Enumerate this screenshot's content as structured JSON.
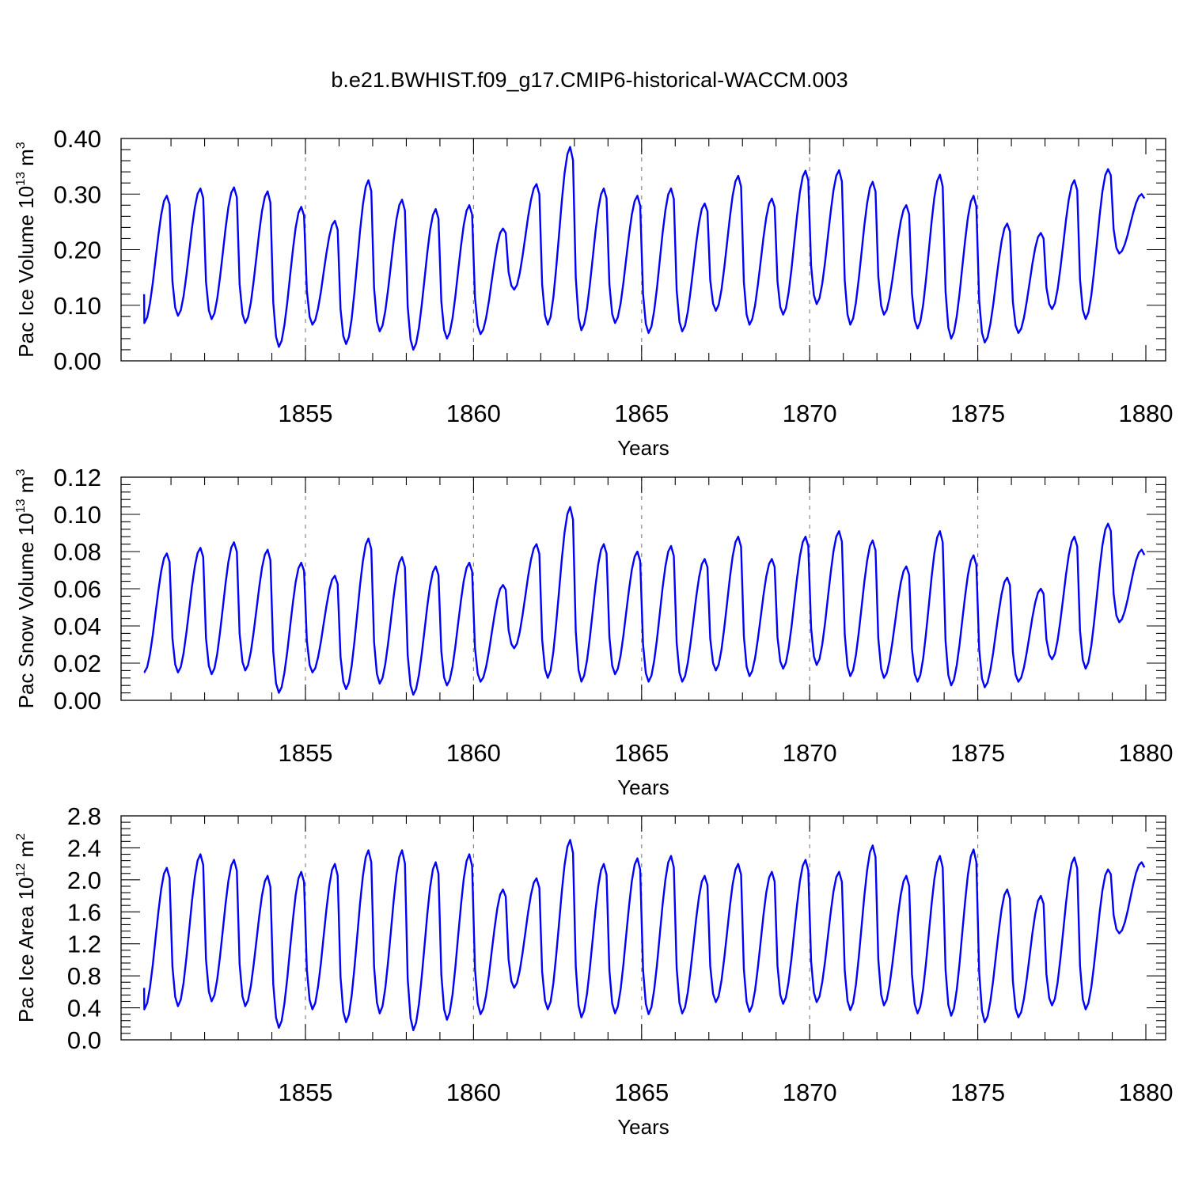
{
  "figure": {
    "title": "b.e21.BWHIST.f09_g17.CMIP6-historical-WACCM.003"
  },
  "colors": {
    "series": "#0000ff",
    "axis": "#000000",
    "reference_lines": "#888888"
  },
  "chart_data": [
    {
      "type": "line",
      "ylabel": "Pac Ice Volume 10^13 m^3",
      "ylabel_parts": {
        "main": "Pac Ice Volume 10",
        "exp1": "13",
        "unit": " m",
        "exp2": "3"
      },
      "xlabel": "Years",
      "xlim": [
        1850.2,
        1880.0
      ],
      "ylim": [
        0.0,
        0.4
      ],
      "xticks": [
        1855,
        1860,
        1865,
        1870,
        1875,
        1880
      ],
      "yticks": [
        0.0,
        0.1,
        0.2,
        0.3,
        0.4
      ],
      "ytick_labels": [
        "0.00",
        "0.10",
        "0.20",
        "0.30",
        "0.40"
      ],
      "reference_lines_x": [
        1855,
        1860,
        1865,
        1870,
        1875
      ],
      "series": [
        {
          "cycles": [
            {
              "peak": 0.297,
              "trough": 0.068
            },
            {
              "peak": 0.31,
              "trough": 0.081
            },
            {
              "peak": 0.312,
              "trough": 0.075
            },
            {
              "peak": 0.305,
              "trough": 0.068
            },
            {
              "peak": 0.277,
              "trough": 0.025
            },
            {
              "peak": 0.252,
              "trough": 0.065
            },
            {
              "peak": 0.325,
              "trough": 0.03
            },
            {
              "peak": 0.29,
              "trough": 0.053
            },
            {
              "peak": 0.273,
              "trough": 0.02
            },
            {
              "peak": 0.28,
              "trough": 0.04
            },
            {
              "peak": 0.238,
              "trough": 0.048
            },
            {
              "peak": 0.318,
              "trough": 0.128
            },
            {
              "peak": 0.385,
              "trough": 0.065
            },
            {
              "peak": 0.31,
              "trough": 0.055
            },
            {
              "peak": 0.297,
              "trough": 0.068
            },
            {
              "peak": 0.31,
              "trough": 0.05
            },
            {
              "peak": 0.283,
              "trough": 0.053
            },
            {
              "peak": 0.333,
              "trough": 0.09
            },
            {
              "peak": 0.292,
              "trough": 0.065
            },
            {
              "peak": 0.342,
              "trough": 0.083
            },
            {
              "peak": 0.343,
              "trough": 0.102
            },
            {
              "peak": 0.322,
              "trough": 0.065
            },
            {
              "peak": 0.28,
              "trough": 0.083
            },
            {
              "peak": 0.335,
              "trough": 0.058
            },
            {
              "peak": 0.297,
              "trough": 0.04
            },
            {
              "peak": 0.247,
              "trough": 0.033
            },
            {
              "peak": 0.23,
              "trough": 0.05
            },
            {
              "peak": 0.325,
              "trough": 0.093
            },
            {
              "peak": 0.345,
              "trough": 0.075
            },
            {
              "peak": 0.3,
              "trough": 0.193
            }
          ],
          "start_value": 0.12
        }
      ]
    },
    {
      "type": "line",
      "ylabel": "Pac Snow Volume 10^13 m^3",
      "ylabel_parts": {
        "main": "Pac Snow Volume 10",
        "exp1": "13",
        "unit": " m",
        "exp2": "3"
      },
      "xlabel": "Years",
      "xlim": [
        1850.2,
        1880.0
      ],
      "ylim": [
        0.0,
        0.12
      ],
      "xticks": [
        1855,
        1860,
        1865,
        1870,
        1875,
        1880
      ],
      "yticks": [
        0.0,
        0.02,
        0.04,
        0.06,
        0.08,
        0.1,
        0.12
      ],
      "ytick_labels": [
        "0.00",
        "0.02",
        "0.04",
        "0.06",
        "0.08",
        "0.10",
        "0.12"
      ],
      "reference_lines_x": [
        1855,
        1860,
        1865,
        1870,
        1875
      ],
      "series": [
        {
          "cycles": [
            {
              "peak": 0.079,
              "trough": 0.015
            },
            {
              "peak": 0.082,
              "trough": 0.015
            },
            {
              "peak": 0.085,
              "trough": 0.014
            },
            {
              "peak": 0.081,
              "trough": 0.016
            },
            {
              "peak": 0.074,
              "trough": 0.004
            },
            {
              "peak": 0.067,
              "trough": 0.015
            },
            {
              "peak": 0.087,
              "trough": 0.006
            },
            {
              "peak": 0.077,
              "trough": 0.009
            },
            {
              "peak": 0.072,
              "trough": 0.003
            },
            {
              "peak": 0.074,
              "trough": 0.008
            },
            {
              "peak": 0.062,
              "trough": 0.01
            },
            {
              "peak": 0.084,
              "trough": 0.028
            },
            {
              "peak": 0.104,
              "trough": 0.012
            },
            {
              "peak": 0.084,
              "trough": 0.01
            },
            {
              "peak": 0.08,
              "trough": 0.014
            },
            {
              "peak": 0.083,
              "trough": 0.01
            },
            {
              "peak": 0.076,
              "trough": 0.01
            },
            {
              "peak": 0.088,
              "trough": 0.016
            },
            {
              "peak": 0.076,
              "trough": 0.013
            },
            {
              "peak": 0.088,
              "trough": 0.017
            },
            {
              "peak": 0.091,
              "trough": 0.019
            },
            {
              "peak": 0.086,
              "trough": 0.013
            },
            {
              "peak": 0.072,
              "trough": 0.012
            },
            {
              "peak": 0.091,
              "trough": 0.01
            },
            {
              "peak": 0.078,
              "trough": 0.008
            },
            {
              "peak": 0.066,
              "trough": 0.007
            },
            {
              "peak": 0.06,
              "trough": 0.01
            },
            {
              "peak": 0.088,
              "trough": 0.022
            },
            {
              "peak": 0.095,
              "trough": 0.017
            },
            {
              "peak": 0.081,
              "trough": 0.042
            }
          ],
          "start_value": 0.015
        }
      ]
    },
    {
      "type": "line",
      "ylabel": "Pac Ice Area 10^12 m^2",
      "ylabel_parts": {
        "main": "Pac Ice Area 10",
        "exp1": "12",
        "unit": " m",
        "exp2": "2"
      },
      "xlabel": "Years",
      "xlim": [
        1850.2,
        1880.0
      ],
      "ylim": [
        0.0,
        2.8
      ],
      "xticks": [
        1855,
        1860,
        1865,
        1870,
        1875,
        1880
      ],
      "yticks": [
        0.0,
        0.4,
        0.8,
        1.2,
        1.6,
        2.0,
        2.4,
        2.8
      ],
      "ytick_labels": [
        "0.0",
        "0.4",
        "0.8",
        "1.2",
        "1.6",
        "2.0",
        "2.4",
        "2.8"
      ],
      "reference_lines_x": [
        1855,
        1860,
        1865,
        1870,
        1875
      ],
      "series": [
        {
          "cycles": [
            {
              "peak": 2.15,
              "trough": 0.38
            },
            {
              "peak": 2.32,
              "trough": 0.42
            },
            {
              "peak": 2.25,
              "trough": 0.48
            },
            {
              "peak": 2.05,
              "trough": 0.42
            },
            {
              "peak": 2.1,
              "trough": 0.15
            },
            {
              "peak": 2.2,
              "trough": 0.38
            },
            {
              "peak": 2.37,
              "trough": 0.22
            },
            {
              "peak": 2.37,
              "trough": 0.33
            },
            {
              "peak": 2.22,
              "trough": 0.12
            },
            {
              "peak": 2.32,
              "trough": 0.25
            },
            {
              "peak": 1.88,
              "trough": 0.32
            },
            {
              "peak": 2.02,
              "trough": 0.65
            },
            {
              "peak": 2.5,
              "trough": 0.38
            },
            {
              "peak": 2.2,
              "trough": 0.28
            },
            {
              "peak": 2.27,
              "trough": 0.33
            },
            {
              "peak": 2.3,
              "trough": 0.32
            },
            {
              "peak": 2.05,
              "trough": 0.33
            },
            {
              "peak": 2.2,
              "trough": 0.47
            },
            {
              "peak": 2.1,
              "trough": 0.35
            },
            {
              "peak": 2.25,
              "trough": 0.45
            },
            {
              "peak": 2.1,
              "trough": 0.47
            },
            {
              "peak": 2.43,
              "trough": 0.37
            },
            {
              "peak": 2.05,
              "trough": 0.43
            },
            {
              "peak": 2.3,
              "trough": 0.33
            },
            {
              "peak": 2.38,
              "trough": 0.3
            },
            {
              "peak": 1.88,
              "trough": 0.22
            },
            {
              "peak": 1.8,
              "trough": 0.28
            },
            {
              "peak": 2.28,
              "trough": 0.43
            },
            {
              "peak": 2.13,
              "trough": 0.38
            },
            {
              "peak": 2.22,
              "trough": 1.33
            }
          ],
          "start_value": 0.65
        }
      ]
    }
  ]
}
